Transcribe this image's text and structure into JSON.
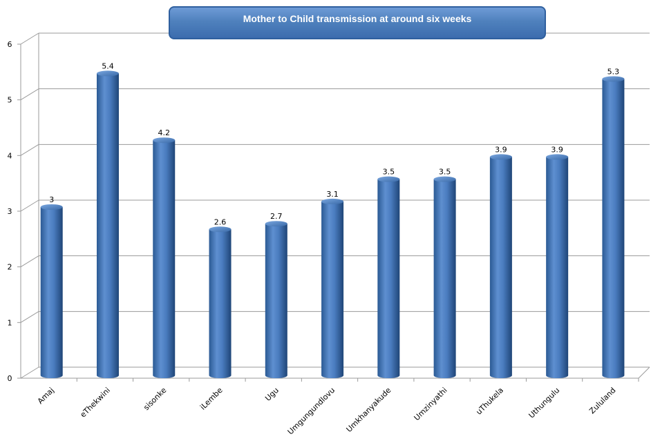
{
  "chart_data": {
    "type": "bar",
    "title": "Mother to Child transmission at around six weeks",
    "categories": [
      "Amaj",
      "eThekwini",
      "sisonke",
      "iLembe",
      "Ugu",
      "Umgungundlovu",
      "Umkhanyakude",
      "Umzinyathi",
      "uThukela",
      "Uthungulu",
      "Zululand"
    ],
    "values": [
      3,
      5.4,
      4.2,
      2.6,
      2.7,
      3.1,
      3.5,
      3.5,
      3.9,
      3.9,
      5.3
    ],
    "data_labels": [
      "3",
      "5.4",
      "4.2",
      "2.6",
      "2.7",
      "3.1",
      "3.5",
      "3.5",
      "3.9",
      "3.9",
      "5.3"
    ],
    "ylim": [
      0,
      6
    ],
    "yticks": [
      "0",
      "1",
      "2",
      "3",
      "4",
      "5",
      "6"
    ],
    "grid": true,
    "legend": "none",
    "bar_color": "#4f81bd"
  }
}
